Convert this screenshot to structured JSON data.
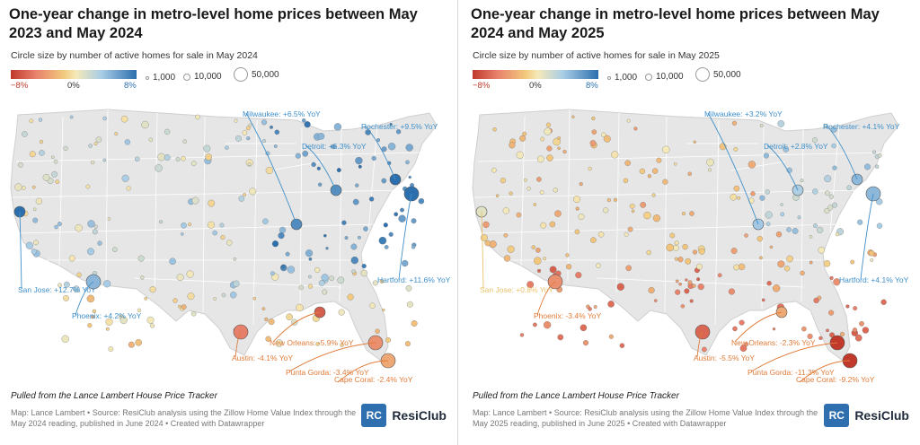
{
  "colors": {
    "neg": "#c0392b",
    "neutral": "#f5e9b8",
    "pos": "#2c6fae",
    "state_fill": "#e6e6e6",
    "state_stroke": "#ffffff"
  },
  "panels": [
    {
      "title": "One-year change in metro-level home prices between May 2023 and May 2024",
      "subtitle": "Circle size by number of active homes for sale in May 2024",
      "legend": {
        "min": "−8%",
        "mid": "0%",
        "max": "8%",
        "sizes": [
          "1,000",
          "10,000",
          "50,000"
        ]
      },
      "note": "Pulled from the Lance Lambert House Price Tracker",
      "credit": "Map: Lance Lambert • Source: ResiClub analysis using the Zillow Home Value Index through the May 2024 reading, published in June 2024 • Created with Datawrapper",
      "logo": "ResiClub",
      "annotations": [
        {
          "city": "Milwaukee",
          "text": "Milwaukee: +6.5% YoY",
          "change": 6.5,
          "color": "#3f8fc9"
        },
        {
          "city": "Rochester",
          "text": "Rochester: +9.5% YoY",
          "change": 9.5,
          "color": "#3f8fc9"
        },
        {
          "city": "Detroit",
          "text": "Detroit: +6.3% YoY",
          "change": 6.3,
          "color": "#3f8fc9"
        },
        {
          "city": "San Jose",
          "text": "San Jose: +12.7% YoY",
          "change": 12.7,
          "color": "#3f8fc9"
        },
        {
          "city": "Phoenix",
          "text": "Phoenix: +4.2% YoY",
          "change": 4.2,
          "color": "#3f8fc9"
        },
        {
          "city": "Hartford",
          "text": "Hartford: +11.6% YoY",
          "change": 11.6,
          "color": "#3f8fc9"
        },
        {
          "city": "New Orleans",
          "text": "New Orleans: -5.9% YoY",
          "change": -5.9,
          "color": "#e07b39"
        },
        {
          "city": "Austin",
          "text": "Austin: -4.1% YoY",
          "change": -4.1,
          "color": "#e07b39"
        },
        {
          "city": "Punta Gorda",
          "text": "Punta Gorda: -3.4% YoY",
          "change": -3.4,
          "color": "#e07b39"
        },
        {
          "city": "Cape Coral",
          "text": "Cape Coral: -2.4% YoY",
          "change": -2.4,
          "color": "#e07b39"
        }
      ]
    },
    {
      "title": "One-year change in metro-level home prices between May 2024 and May 2025",
      "subtitle": "Circle size by number of active homes for sale in May 2025",
      "legend": {
        "min": "−8%",
        "mid": "0%",
        "max": "8%",
        "sizes": [
          "1,000",
          "10,000",
          "50,000"
        ]
      },
      "note": "Pulled from the Lance Lambert House Price Tracker",
      "credit": "Map: Lance Lambert • Source: ResiClub analysis using the Zillow Home Value Index through the May 2025 reading, published in June 2025 • Created with Datawrapper",
      "logo": "ResiClub",
      "annotations": [
        {
          "city": "Milwaukee",
          "text": "Milwaukee: +3.2% YoY",
          "change": 3.2,
          "color": "#3f8fc9"
        },
        {
          "city": "Rochester",
          "text": "Rochester: +4.1% YoY",
          "change": 4.1,
          "color": "#3f8fc9"
        },
        {
          "city": "Detroit",
          "text": "Detroit: +2.8% YoY",
          "change": 2.8,
          "color": "#3f8fc9"
        },
        {
          "city": "San Jose",
          "text": "San Jose: +0.8% YoY",
          "change": 0.8,
          "color": "#e8c36a"
        },
        {
          "city": "Phoenix",
          "text": "Phoenix: -3.4% YoY",
          "change": -3.4,
          "color": "#e07b39"
        },
        {
          "city": "Hartford",
          "text": "Hartford: +4.1% YoY",
          "change": 4.1,
          "color": "#3f8fc9"
        },
        {
          "city": "New Orleans",
          "text": "New Orleans: -2.3% YoY",
          "change": -2.3,
          "color": "#e07b39"
        },
        {
          "city": "Austin",
          "text": "Austin: -5.5% YoY",
          "change": -5.5,
          "color": "#e07b39"
        },
        {
          "city": "Punta Gorda",
          "text": "Punta Gorda: -11.3% YoY",
          "change": -11.3,
          "color": "#e07b39"
        },
        {
          "city": "Cape Coral",
          "text": "Cape Coral: -9.2% YoY",
          "change": -9.2,
          "color": "#e07b39"
        }
      ]
    }
  ]
}
